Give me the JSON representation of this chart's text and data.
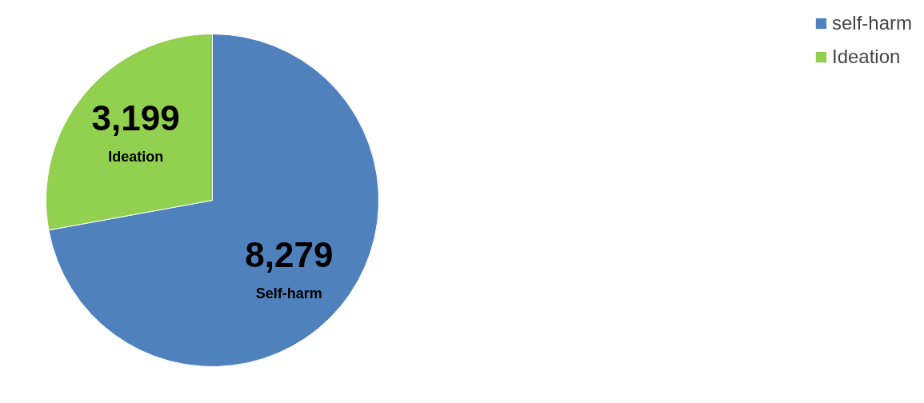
{
  "chart_data": {
    "type": "pie",
    "categories": [
      "self-harm",
      "Ideation"
    ],
    "values": [
      8279,
      3199
    ],
    "colors": [
      "#4f81bd",
      "#92d050"
    ],
    "value_labels": [
      "8,279",
      "3,199"
    ],
    "annotations": [
      "Self-harm",
      "Ideation"
    ],
    "legend": "right"
  }
}
